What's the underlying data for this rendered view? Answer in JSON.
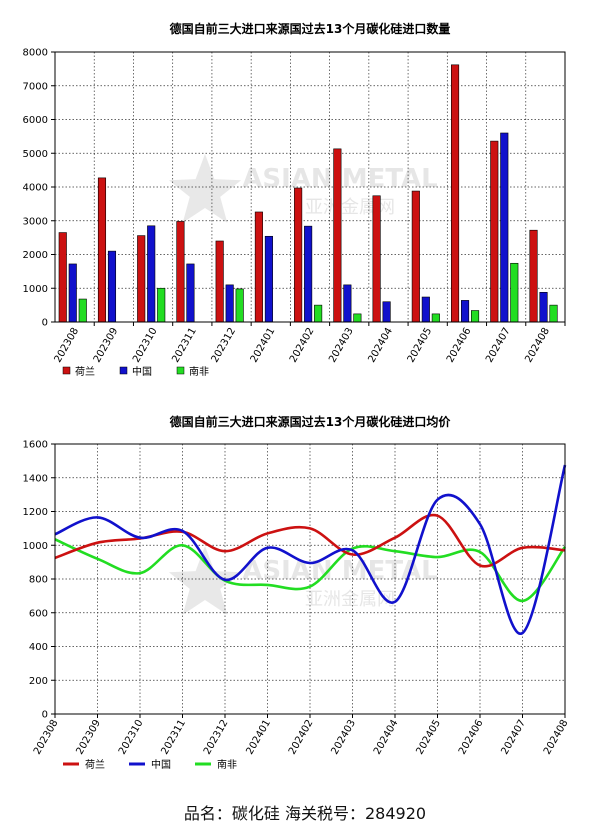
{
  "footer": "品名：碳化硅  海关税号：284920",
  "watermark": {
    "line1": "ASIAN METAL",
    "line2": "亚洲金属网"
  },
  "colors": {
    "netherlands": "#cc1111",
    "china": "#1111cc",
    "south_africa": "#22dd22"
  },
  "chart_data": [
    {
      "type": "bar",
      "title": "德国自前三大进口来源国过去13个月碳化硅进口数量",
      "categories": [
        "202308",
        "202309",
        "202310",
        "202311",
        "202312",
        "202401",
        "202402",
        "202403",
        "202404",
        "202405",
        "202406",
        "202407",
        "202408"
      ],
      "ylim": [
        0,
        8000
      ],
      "yticks": [
        0,
        1000,
        2000,
        3000,
        4000,
        5000,
        6000,
        7000,
        8000
      ],
      "legend_position": "bottom-left",
      "grid": true,
      "series": [
        {
          "name": "荷兰",
          "color": "#cc1111",
          "values": [
            2650,
            4270,
            2560,
            2980,
            2400,
            3260,
            3970,
            5130,
            3740,
            3880,
            7620,
            5360,
            2720
          ]
        },
        {
          "name": "中国",
          "color": "#1111cc",
          "values": [
            1720,
            2100,
            2850,
            1720,
            1100,
            2540,
            2840,
            1100,
            600,
            740,
            640,
            5600,
            880
          ]
        },
        {
          "name": "南非",
          "color": "#22dd22",
          "values": [
            680,
            0,
            1000,
            0,
            980,
            0,
            500,
            240,
            0,
            240,
            340,
            1740,
            500
          ]
        }
      ]
    },
    {
      "type": "line",
      "title": "德国自前三大进口来源国过去13个月碳化硅进口均价",
      "categories": [
        "202308",
        "202309",
        "202310",
        "202311",
        "202312",
        "202401",
        "202402",
        "202403",
        "202404",
        "202405",
        "202406",
        "202407",
        "202408"
      ],
      "ylim": [
        0,
        1600
      ],
      "yticks": [
        0,
        200,
        400,
        600,
        800,
        1000,
        1200,
        1400,
        1600
      ],
      "legend_position": "bottom-left",
      "grid": true,
      "series": [
        {
          "name": "荷兰",
          "color": "#cc1111",
          "values": [
            925,
            1015,
            1040,
            1080,
            965,
            1070,
            1100,
            945,
            1045,
            1175,
            880,
            985,
            970
          ]
        },
        {
          "name": "中国",
          "color": "#1111cc",
          "values": [
            1065,
            1165,
            1045,
            1085,
            795,
            985,
            895,
            970,
            665,
            1270,
            1125,
            480,
            1475
          ]
        },
        {
          "name": "南非",
          "color": "#22dd22",
          "values": [
            1035,
            920,
            835,
            1000,
            790,
            765,
            755,
            980,
            965,
            930,
            960,
            670,
            990
          ]
        }
      ]
    }
  ]
}
